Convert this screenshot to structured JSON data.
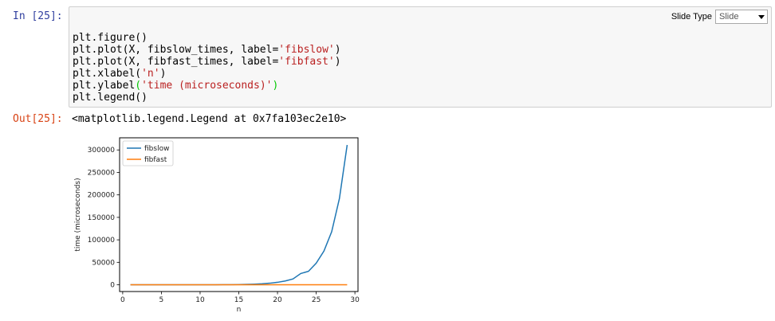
{
  "cell": {
    "in_prompt": "In [25]:",
    "out_prompt": "Out[25]:",
    "slide_type_label": "Slide Type",
    "slide_type_value": "Slide",
    "code_lines": {
      "l1": "plt.figure()",
      "l2a": "plt.plot(X, fibslow_times, label=",
      "l2s": "'fibslow'",
      "l2b": ")",
      "l3a": "plt.plot(X, fibfast_times, label=",
      "l3s": "'fibfast'",
      "l3b": ")",
      "l4a": "plt.xlabel(",
      "l4s": "'n'",
      "l4b": ")",
      "l5a": "plt.ylabel",
      "l5p1": "(",
      "l5s": "'time (microseconds)'",
      "l5p2": ")",
      "l6": "plt.legend()"
    },
    "output_text": "<matplotlib.legend.Legend at 0x7fa103ec2e10>"
  },
  "chart_data": {
    "type": "line",
    "xlabel": "n",
    "ylabel": "time (microseconds)",
    "xlim": [
      -0.4,
      30.4
    ],
    "ylim": [
      -15000,
      327000
    ],
    "xticks": [
      0,
      5,
      10,
      15,
      20,
      25,
      30
    ],
    "yticks": [
      0,
      50000,
      100000,
      150000,
      200000,
      250000,
      300000
    ],
    "legend_position": "top-left",
    "grid": false,
    "x": [
      1,
      2,
      3,
      4,
      5,
      6,
      7,
      8,
      9,
      10,
      11,
      12,
      13,
      14,
      15,
      16,
      17,
      18,
      19,
      20,
      21,
      22,
      23,
      24,
      25,
      26,
      27,
      28,
      29
    ],
    "series": [
      {
        "name": "fibslow",
        "color": "#1f77b4",
        "values": [
          2,
          2,
          3,
          4,
          5,
          8,
          12,
          20,
          30,
          50,
          80,
          130,
          200,
          330,
          550,
          900,
          1400,
          2200,
          3500,
          5500,
          8500,
          13000,
          25000,
          30000,
          48000,
          75000,
          118000,
          192000,
          311000
        ]
      },
      {
        "name": "fibfast",
        "color": "#ff7f0e",
        "values": [
          1,
          1,
          1,
          1,
          1,
          1,
          1,
          1,
          1,
          1,
          1,
          1,
          1,
          1,
          1,
          1,
          1,
          1,
          1,
          1,
          1,
          1,
          1,
          1,
          1,
          1,
          1,
          1,
          1
        ]
      }
    ]
  }
}
